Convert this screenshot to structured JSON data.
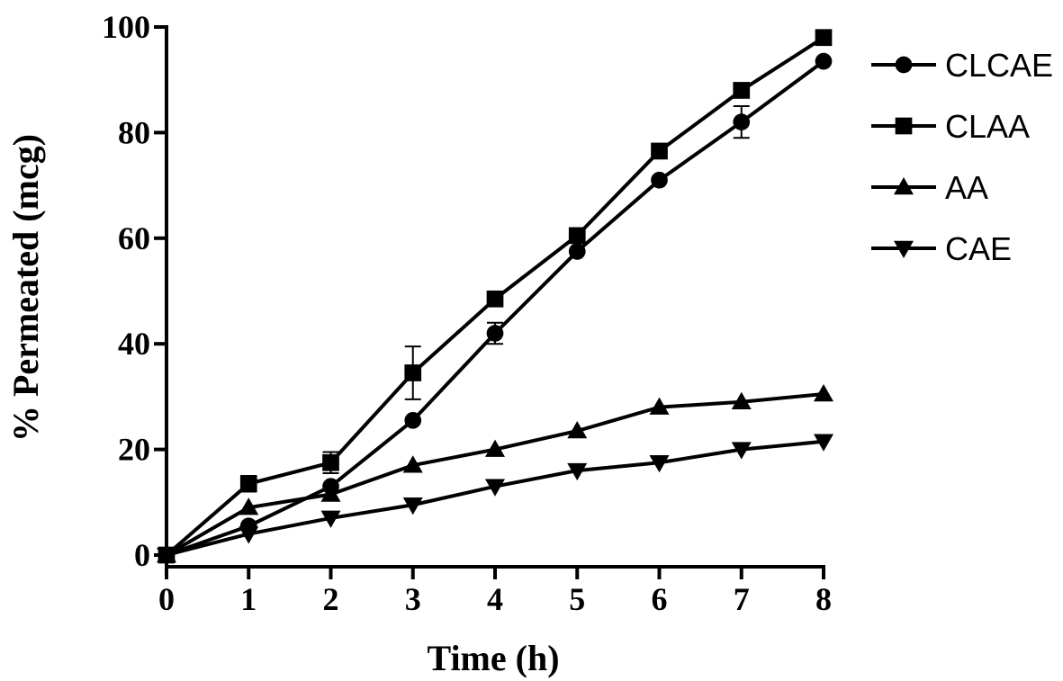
{
  "chart_data": {
    "type": "line",
    "title": "",
    "xlabel": "Time (h)",
    "ylabel": "% Permeated (mcg)",
    "xlim": [
      0,
      8
    ],
    "ylim": [
      0,
      100
    ],
    "x_ticks": [
      0,
      1,
      2,
      3,
      4,
      5,
      6,
      7,
      8
    ],
    "y_ticks": [
      0,
      20,
      40,
      60,
      80,
      100
    ],
    "grid": false,
    "legend_position": "top-right",
    "line_color": "#000000",
    "series": [
      {
        "name": "CLCAE",
        "marker": "circle",
        "x": [
          0,
          1,
          2,
          3,
          4,
          5,
          6,
          7,
          8
        ],
        "y": [
          0,
          5.5,
          13,
          25.5,
          42,
          57.5,
          71,
          82,
          93.5
        ],
        "err": [
          0,
          0,
          0,
          0,
          2,
          0,
          0,
          3,
          0
        ]
      },
      {
        "name": "CLAA",
        "marker": "square",
        "x": [
          0,
          1,
          2,
          3,
          4,
          5,
          6,
          7,
          8
        ],
        "y": [
          0,
          13.5,
          17.5,
          34.5,
          48.5,
          60.5,
          76.5,
          88,
          98
        ],
        "err": [
          0,
          1.5,
          2,
          5,
          0,
          0,
          0,
          0,
          0
        ]
      },
      {
        "name": "AA",
        "marker": "triangle-up",
        "x": [
          0,
          1,
          2,
          3,
          4,
          5,
          6,
          7,
          8
        ],
        "y": [
          0,
          9,
          11.5,
          17,
          20,
          23.5,
          28,
          29,
          30.5
        ],
        "err": [
          0,
          0,
          0,
          0,
          0,
          0,
          0,
          0,
          0
        ]
      },
      {
        "name": "CAE",
        "marker": "triangle-down",
        "x": [
          0,
          1,
          2,
          3,
          4,
          5,
          6,
          7,
          8
        ],
        "y": [
          0,
          4,
          7,
          9.5,
          13,
          16,
          17.5,
          20,
          21.5
        ],
        "err": [
          0,
          0,
          0,
          0,
          0,
          0,
          0,
          0,
          0
        ]
      }
    ]
  }
}
